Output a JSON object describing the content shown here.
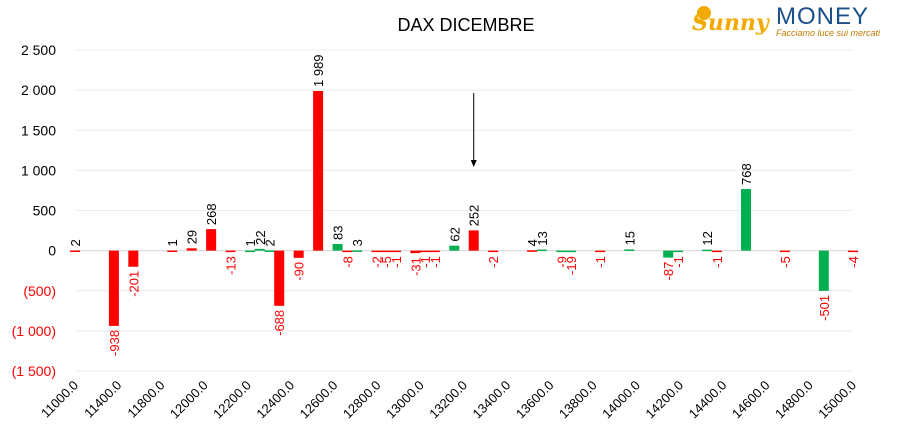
{
  "brand": {
    "name_part1": "Sunny",
    "name_part2": "MONEY",
    "tagline": "Facciamo luce sui mercati",
    "colors": {
      "sunny": "#f2a900",
      "money": "#1a4f8a"
    }
  },
  "chart_data": {
    "type": "bar",
    "title": "DAX DICEMBRE",
    "xlabel": "",
    "ylabel": "",
    "ylim": [
      -1500,
      2500
    ],
    "yticks": [
      2500,
      2000,
      1500,
      1000,
      500,
      0,
      -500,
      -1000,
      -1500
    ],
    "ytick_labels": [
      "2 500",
      "2 000",
      "1 500",
      "1 000",
      "500",
      "0",
      "(500)",
      "(1 000)",
      "(1 500)"
    ],
    "x_range": [
      11000,
      15000
    ],
    "xticks": [
      11000,
      11400,
      11800,
      12000,
      12200,
      12400,
      12600,
      12800,
      13000,
      13200,
      13400,
      13600,
      13800,
      14000,
      14200,
      14400,
      14600,
      14800,
      15000
    ],
    "xtick_labels": [
      "11000.0",
      "11400.0",
      "11800.0",
      "12000.0",
      "12200.0",
      "12400.0",
      "12600.0",
      "12800.0",
      "13000.0",
      "13200.0",
      "13400.0",
      "13600.0",
      "13800.0",
      "14000.0",
      "14200.0",
      "14400.0",
      "14600.0",
      "14800.0",
      "15000.0"
    ],
    "grid": true,
    "colors": {
      "red": "#ff0000",
      "green": "#00b050",
      "negative_tick": "#ff0000",
      "positive_tick": "#000000"
    },
    "arrow_at": 13050,
    "bars": [
      {
        "x": 11000,
        "value": 2,
        "color": "red"
      },
      {
        "x": 11200,
        "value": -938,
        "color": "red"
      },
      {
        "x": 11300,
        "value": -201,
        "color": "red"
      },
      {
        "x": 11500,
        "value": 1,
        "color": "red"
      },
      {
        "x": 11600,
        "value": 29,
        "color": "red"
      },
      {
        "x": 11700,
        "value": 268,
        "color": "red"
      },
      {
        "x": 11800,
        "value": -13,
        "color": "red"
      },
      {
        "x": 11900,
        "value": 1,
        "color": "green"
      },
      {
        "x": 11950,
        "value": 22,
        "color": "green"
      },
      {
        "x": 12000,
        "value": 2,
        "color": "green"
      },
      {
        "x": 12050,
        "value": -688,
        "color": "red"
      },
      {
        "x": 12150,
        "value": -90,
        "color": "red"
      },
      {
        "x": 12250,
        "value": 1989,
        "color": "red"
      },
      {
        "x": 12350,
        "value": 83,
        "color": "green"
      },
      {
        "x": 12400,
        "value": -8,
        "color": "red"
      },
      {
        "x": 12450,
        "value": 3,
        "color": "green"
      },
      {
        "x": 12550,
        "value": -2,
        "color": "red"
      },
      {
        "x": 12600,
        "value": -5,
        "color": "red"
      },
      {
        "x": 12650,
        "value": -1,
        "color": "red"
      },
      {
        "x": 12750,
        "value": -31,
        "color": "red"
      },
      {
        "x": 12800,
        "value": -1,
        "color": "red"
      },
      {
        "x": 12850,
        "value": -1,
        "color": "red"
      },
      {
        "x": 12950,
        "value": 62,
        "color": "green"
      },
      {
        "x": 13050,
        "value": 252,
        "color": "red"
      },
      {
        "x": 13150,
        "value": -2,
        "color": "red"
      },
      {
        "x": 13350,
        "value": 4,
        "color": "red"
      },
      {
        "x": 13400,
        "value": 13,
        "color": "green"
      },
      {
        "x": 13500,
        "value": -9,
        "color": "green"
      },
      {
        "x": 13550,
        "value": -19,
        "color": "green"
      },
      {
        "x": 13700,
        "value": -1,
        "color": "red"
      },
      {
        "x": 13850,
        "value": 15,
        "color": "green"
      },
      {
        "x": 14050,
        "value": -87,
        "color": "green"
      },
      {
        "x": 14100,
        "value": -1,
        "color": "green"
      },
      {
        "x": 14250,
        "value": 12,
        "color": "green"
      },
      {
        "x": 14300,
        "value": -1,
        "color": "red"
      },
      {
        "x": 14450,
        "value": 768,
        "color": "green"
      },
      {
        "x": 14650,
        "value": -5,
        "color": "red"
      },
      {
        "x": 14850,
        "value": -501,
        "color": "green"
      },
      {
        "x": 15000,
        "value": -4,
        "color": "red"
      }
    ]
  }
}
